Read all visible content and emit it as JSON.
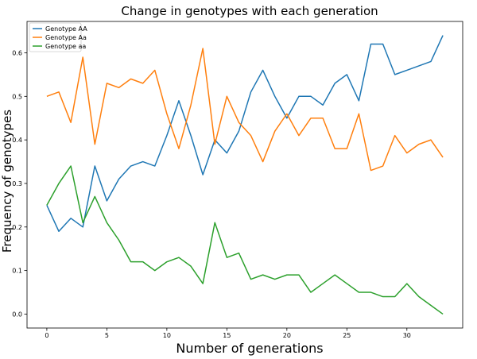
{
  "chart_data": {
    "type": "line",
    "title": "Change in genotypes with each generation",
    "xlabel": "Number of generations",
    "ylabel": "Frequency of genotypes",
    "xlim": [
      -1.65,
      34.65
    ],
    "ylim": [
      -0.032,
      0.672
    ],
    "x_ticks": [
      0,
      5,
      10,
      15,
      20,
      25,
      30
    ],
    "y_ticks": [
      0.0,
      0.1,
      0.2,
      0.3,
      0.4,
      0.5,
      0.6
    ],
    "y_tick_labels": [
      "0.0",
      "0.1",
      "0.2",
      "0.3",
      "0.4",
      "0.5",
      "0.6"
    ],
    "grid": false,
    "legend_position": "top-left",
    "x": [
      0,
      1,
      2,
      3,
      4,
      5,
      6,
      7,
      8,
      9,
      10,
      11,
      12,
      13,
      14,
      15,
      16,
      17,
      18,
      19,
      20,
      21,
      22,
      23,
      24,
      25,
      26,
      27,
      28,
      29,
      30,
      31,
      32,
      33
    ],
    "series": [
      {
        "name": "Genotype AA",
        "color": "#1f77b4",
        "values": [
          0.25,
          0.19,
          0.22,
          0.2,
          0.34,
          0.26,
          0.31,
          0.34,
          0.35,
          0.34,
          0.41,
          0.49,
          0.41,
          0.32,
          0.4,
          0.37,
          0.42,
          0.51,
          0.56,
          0.5,
          0.45,
          0.5,
          0.5,
          0.48,
          0.53,
          0.55,
          0.49,
          0.62,
          0.62,
          0.55,
          0.56,
          0.57,
          0.58,
          0.64
        ]
      },
      {
        "name": "Genotype Aa",
        "color": "#ff7f0e",
        "values": [
          0.5,
          0.51,
          0.44,
          0.59,
          0.39,
          0.53,
          0.52,
          0.54,
          0.53,
          0.56,
          0.46,
          0.38,
          0.48,
          0.61,
          0.39,
          0.5,
          0.44,
          0.41,
          0.35,
          0.42,
          0.46,
          0.41,
          0.45,
          0.45,
          0.38,
          0.38,
          0.46,
          0.33,
          0.34,
          0.41,
          0.37,
          0.39,
          0.4,
          0.36
        ]
      },
      {
        "name": "Genotype aa",
        "color": "#2ca02c",
        "values": [
          0.25,
          0.3,
          0.34,
          0.21,
          0.27,
          0.21,
          0.17,
          0.12,
          0.12,
          0.1,
          0.12,
          0.13,
          0.11,
          0.07,
          0.21,
          0.13,
          0.14,
          0.08,
          0.09,
          0.08,
          0.09,
          0.09,
          0.05,
          0.07,
          0.09,
          0.07,
          0.05,
          0.05,
          0.04,
          0.04,
          0.07,
          0.04,
          0.02,
          0.0
        ]
      }
    ]
  }
}
